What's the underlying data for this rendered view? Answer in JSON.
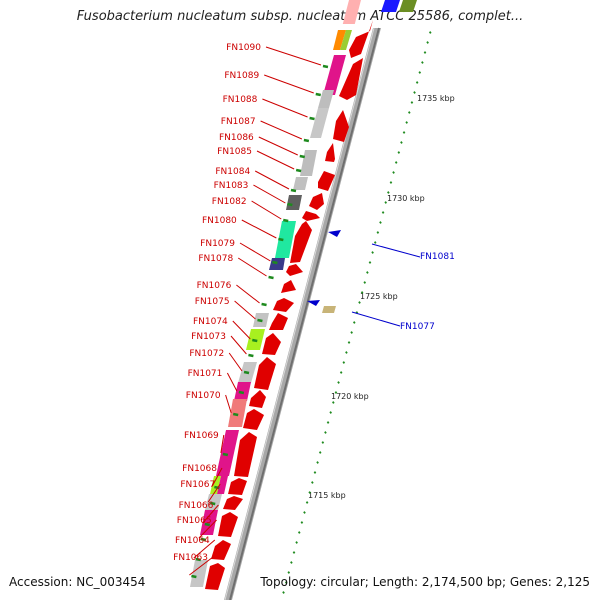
{
  "title": "Fusobacterium nucleatum subsp. nucleatum ATCC 25586, complet...",
  "footer": {
    "accession": "Accession: NC_003454",
    "summary": "Topology: circular; Length: 2,174,500 bp; Genes: 2,125"
  },
  "colors": {
    "backbone": "#9a9a9a",
    "forward_gene": "#ff0000",
    "label_red": "#cc0000",
    "label_blue": "#0000cc",
    "tick": "#1e8a1e"
  },
  "scale": {
    "unit": "kbp",
    "labels": [
      "1735 kbp",
      "1730 kbp",
      "1725 kbp",
      "1720 kbp",
      "1715 kbp"
    ]
  },
  "left_labels": [
    "FN1090",
    "FN1089",
    "FN1088",
    "FN1087",
    "FN1086",
    "FN1085",
    "FN1084",
    "FN1083",
    "FN1082",
    "FN1080",
    "FN1079",
    "FN1078",
    "FN1076",
    "FN1075",
    "FN1074",
    "FN1073",
    "FN1072",
    "FN1071",
    "FN1070",
    "FN1069",
    "FN1068",
    "FN1067",
    "FN1066",
    "FN1065",
    "FN1064",
    "FN1063"
  ],
  "right_labels": [
    "FN1081",
    "FN1077"
  ]
}
